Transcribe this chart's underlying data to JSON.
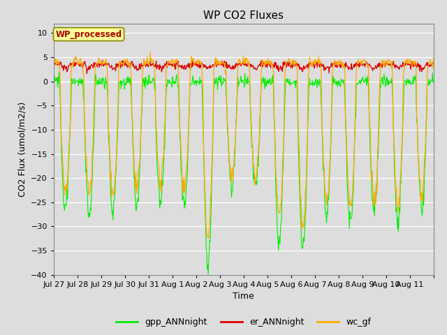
{
  "title": "WP CO2 Fluxes",
  "xlabel": "Time",
  "ylabel": "CO2 Flux (umol/m2/s)",
  "ylim": [
    -40,
    12
  ],
  "yticks": [
    10,
    5,
    0,
    -5,
    -10,
    -15,
    -20,
    -25,
    -30,
    -35,
    -40
  ],
  "annotation_text": "WP_processed",
  "annotation_bg": "#ffff99",
  "annotation_fg": "#aa0000",
  "annotation_border": "#888800",
  "gpp_color": "#00ee00",
  "er_color": "#dd0000",
  "wc_color": "#ffaa00",
  "bg_color": "#dddddd",
  "fig_bg": "#dddddd",
  "legend_labels": [
    "gpp_ANNnight",
    "er_ANNnight",
    "wc_gf"
  ],
  "n_days": 16,
  "points_per_day": 48,
  "xtick_labels": [
    "Jul 27",
    "Jul 28",
    "Jul 29",
    "Jul 30",
    "Jul 31",
    "Aug 1",
    "Aug 2",
    "Aug 3",
    "Aug 4",
    "Aug 5",
    "Aug 6",
    "Aug 7",
    "Aug 8",
    "Aug 9",
    "Aug 10",
    "Aug 11"
  ]
}
